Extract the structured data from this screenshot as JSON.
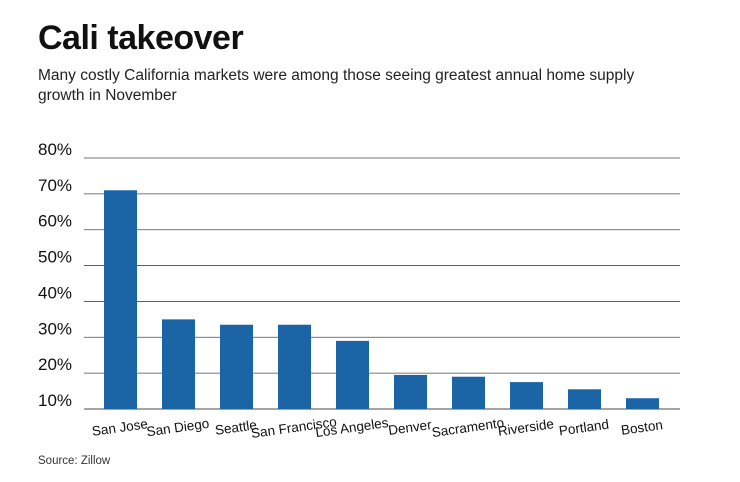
{
  "header": {
    "title": "Cali takeover",
    "subtitle": "Many costly California markets were among those seeing greatest annual home supply growth in November"
  },
  "footer": {
    "source": "Source: Zillow"
  },
  "colors": {
    "bar": "#1b65a6",
    "gridline": "#4a4a4a"
  },
  "chart_data": {
    "type": "bar",
    "title": "Cali takeover",
    "subtitle": "Many costly California markets were among those seeing greatest annual home supply growth in November",
    "xlabel": "",
    "ylabel": "",
    "categories": [
      "San Jose",
      "San Diego",
      "Seattle",
      "San Francisco",
      "Los Angeles",
      "Denver",
      "Sacramento",
      "Riverside",
      "Portland",
      "Boston"
    ],
    "values": [
      71,
      35,
      33.5,
      33.5,
      29,
      19.5,
      19,
      17.5,
      15.5,
      13
    ],
    "ylim": [
      10,
      80
    ],
    "yticks": [
      10,
      20,
      30,
      40,
      50,
      60,
      70,
      80
    ],
    "ytick_labels": [
      "10%",
      "20%",
      "30%",
      "40%",
      "50%",
      "60%",
      "70%",
      "80%"
    ],
    "grid": true,
    "legend": "none"
  }
}
